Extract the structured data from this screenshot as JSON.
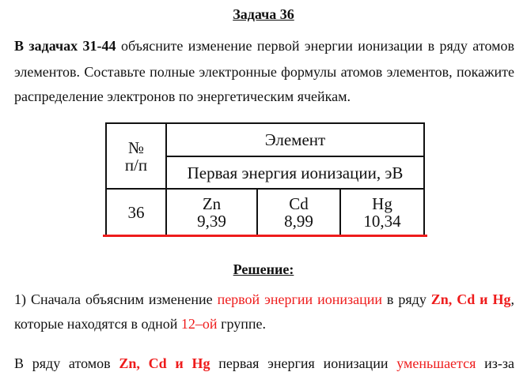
{
  "title": "Задача 36",
  "task": {
    "bold_prefix": "В задачах 31-44",
    "line1_rest": " объясните изменение первой энергии ионизации в ряду атомов",
    "line2": "элементов. Составьте полные электронные формулы атомов элементов, покажите",
    "line3": "распределение электронов по энергетическим ячейкам."
  },
  "table": {
    "col_num_header": "№ п/п",
    "element_header": "Элемент",
    "energy_header": "Первая энергия ионизации, эВ",
    "row_num": "36",
    "elements": [
      {
        "symbol": "Zn",
        "value": "9,39"
      },
      {
        "symbol": "Cd",
        "value": "8,99"
      },
      {
        "symbol": "Hg",
        "value": "10,34"
      }
    ]
  },
  "solution": {
    "heading": "Решение:",
    "p1_a": "1) Сначала объясним изменение ",
    "p1_red": "первой энергии ионизации",
    "p1_b": " в ряду ",
    "p1_bold_red": "Zn, Cd и Hg",
    "p1_c": ",",
    "p2_a": "которые находятся в одной ",
    "p2_red": "12–ой",
    "p2_b": " группе.",
    "p3_a": "В ряду атомов ",
    "p3_bold_red": "Zn, Cd и Hg",
    "p3_b": " первая энергия ионизации ",
    "p3_red": "уменьшается",
    "p3_c": " из-за"
  },
  "colors": {
    "accent_red": "#ee1c1c"
  }
}
